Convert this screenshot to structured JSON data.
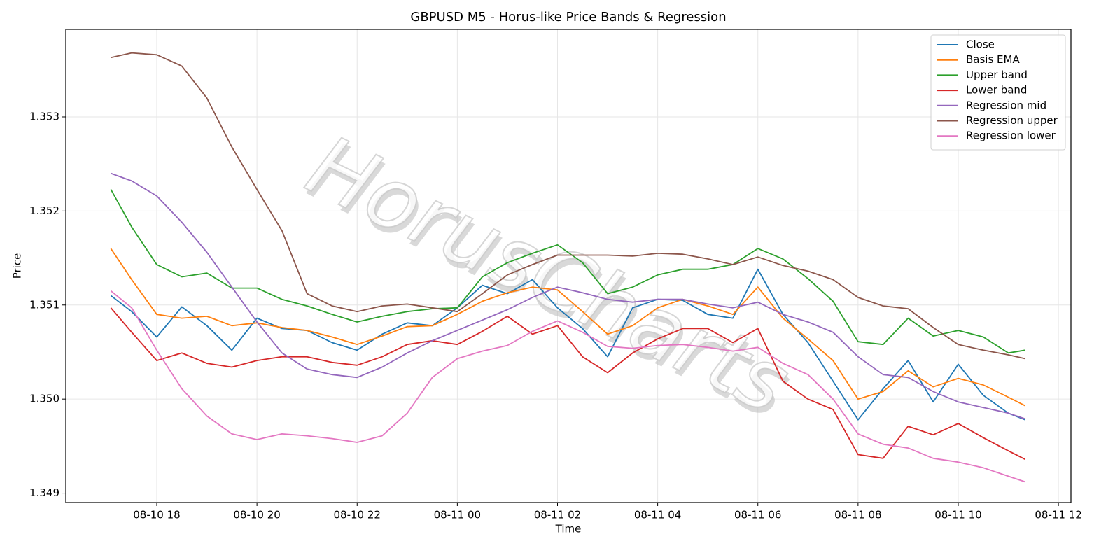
{
  "chart_data": {
    "type": "line",
    "title": "GBPUSD M5 - Horus-like Price Bands & Regression",
    "xlabel": "Time",
    "ylabel": "Price",
    "watermark": "HorusCharts",
    "x": [
      "08-10 17:05",
      "08-10 17:30",
      "08-10 18:00",
      "08-10 18:30",
      "08-10 19:00",
      "08-10 19:30",
      "08-10 20:00",
      "08-10 20:30",
      "08-10 21:00",
      "08-10 21:30",
      "08-10 22:00",
      "08-10 22:30",
      "08-10 23:00",
      "08-10 23:30",
      "08-11 00:00",
      "08-11 00:30",
      "08-11 01:00",
      "08-11 01:30",
      "08-11 02:00",
      "08-11 02:30",
      "08-11 03:00",
      "08-11 03:30",
      "08-11 04:00",
      "08-11 04:30",
      "08-11 05:00",
      "08-11 05:30",
      "08-11 06:00",
      "08-11 06:30",
      "08-11 07:00",
      "08-11 07:30",
      "08-11 08:00",
      "08-11 08:30",
      "08-11 09:00",
      "08-11 09:30",
      "08-11 10:00",
      "08-11 10:30",
      "08-11 11:00",
      "08-11 11:20"
    ],
    "series": [
      {
        "name": "Close",
        "color": "#1f77b4",
        "values": [
          1.3511,
          1.35093,
          1.35066,
          1.35098,
          1.35078,
          1.35052,
          1.35086,
          1.35075,
          1.35073,
          1.3506,
          1.35052,
          1.35069,
          1.35081,
          1.35078,
          1.35097,
          1.35121,
          1.35112,
          1.35127,
          1.35097,
          1.35075,
          1.35045,
          1.35097,
          1.35106,
          1.35105,
          1.3509,
          1.35086,
          1.35138,
          1.3509,
          1.3506,
          1.35019,
          1.34978,
          1.35011,
          1.35041,
          1.34997,
          1.35037,
          1.35004,
          1.34985,
          1.34978
        ]
      },
      {
        "name": "Basis EMA",
        "color": "#ff7f0e",
        "values": [
          1.3516,
          1.35127,
          1.3509,
          1.35086,
          1.35088,
          1.35078,
          1.35081,
          1.35076,
          1.35073,
          1.35066,
          1.35058,
          1.35067,
          1.35077,
          1.35078,
          1.3509,
          1.35104,
          1.35113,
          1.35119,
          1.35116,
          1.35093,
          1.35069,
          1.35078,
          1.35097,
          1.35106,
          1.35099,
          1.3509,
          1.35119,
          1.35086,
          1.35064,
          1.35041,
          1.35,
          1.35008,
          1.3503,
          1.35013,
          1.35022,
          1.35015,
          1.35002,
          1.34993
        ]
      },
      {
        "name": "Upper band",
        "color": "#2ca02c",
        "values": [
          1.35223,
          1.35183,
          1.35143,
          1.3513,
          1.35134,
          1.35118,
          1.35118,
          1.35106,
          1.35099,
          1.3509,
          1.35082,
          1.35088,
          1.35093,
          1.35096,
          1.35097,
          1.3513,
          1.35145,
          1.35155,
          1.35164,
          1.35145,
          1.35112,
          1.35119,
          1.35132,
          1.35138,
          1.35138,
          1.35143,
          1.3516,
          1.35149,
          1.35128,
          1.35104,
          1.35061,
          1.35058,
          1.35086,
          1.35067,
          1.35073,
          1.35066,
          1.35049,
          1.35052
        ]
      },
      {
        "name": "Lower band",
        "color": "#d62728",
        "values": [
          1.35097,
          1.35071,
          1.35041,
          1.35049,
          1.35038,
          1.35034,
          1.35041,
          1.35045,
          1.35045,
          1.35039,
          1.35036,
          1.35045,
          1.35058,
          1.35062,
          1.35058,
          1.35072,
          1.35088,
          1.35069,
          1.35078,
          1.35045,
          1.35028,
          1.35049,
          1.35064,
          1.35075,
          1.35075,
          1.3506,
          1.35075,
          1.35019,
          1.35,
          1.34989,
          1.34941,
          1.34937,
          1.34971,
          1.34962,
          1.34974,
          1.34959,
          1.34945,
          1.34936
        ]
      },
      {
        "name": "Regression mid",
        "color": "#9467bd",
        "values": [
          1.3524,
          1.35232,
          1.35216,
          1.35188,
          1.35156,
          1.35119,
          1.35082,
          1.35049,
          1.35032,
          1.35026,
          1.35023,
          1.35034,
          1.35049,
          1.35062,
          1.35073,
          1.35084,
          1.35095,
          1.35108,
          1.35119,
          1.35113,
          1.35106,
          1.35103,
          1.35106,
          1.35106,
          1.35101,
          1.35097,
          1.35103,
          1.3509,
          1.35082,
          1.35071,
          1.35045,
          1.35026,
          1.35023,
          1.35008,
          1.34997,
          1.34991,
          1.34985,
          1.34979
        ]
      },
      {
        "name": "Regression upper",
        "color": "#8c564b",
        "values": [
          1.35363,
          1.35368,
          1.35366,
          1.35354,
          1.3532,
          1.35268,
          1.35223,
          1.35179,
          1.35112,
          1.35099,
          1.35093,
          1.35099,
          1.35101,
          1.35097,
          1.35093,
          1.35112,
          1.35132,
          1.35143,
          1.35153,
          1.35153,
          1.35153,
          1.35152,
          1.35155,
          1.35154,
          1.35149,
          1.35143,
          1.35151,
          1.35142,
          1.35136,
          1.35127,
          1.35108,
          1.35099,
          1.35096,
          1.35076,
          1.35058,
          1.35052,
          1.35047,
          1.35043
        ]
      },
      {
        "name": "Regression lower",
        "color": "#e377c2",
        "values": [
          1.35115,
          1.35097,
          1.35052,
          1.35011,
          1.34982,
          1.34963,
          1.34957,
          1.34963,
          1.34961,
          1.34958,
          1.34954,
          1.34961,
          1.34985,
          1.35023,
          1.35043,
          1.35051,
          1.35057,
          1.35072,
          1.35083,
          1.35071,
          1.35056,
          1.35054,
          1.35057,
          1.35058,
          1.35055,
          1.35051,
          1.35055,
          1.35038,
          1.35026,
          1.35,
          1.34963,
          1.34952,
          1.34948,
          1.34937,
          1.34933,
          1.34927,
          1.34918,
          1.34912
        ]
      }
    ],
    "xlim": [
      "08-10 16:11",
      "08-11 12:15"
    ],
    "xticks": [
      {
        "value": "08-10 18:00",
        "label": "08-10 18"
      },
      {
        "value": "08-10 20:00",
        "label": "08-10 20"
      },
      {
        "value": "08-10 22:00",
        "label": "08-10 22"
      },
      {
        "value": "08-11 00:00",
        "label": "08-11 00"
      },
      {
        "value": "08-11 02:00",
        "label": "08-11 02"
      },
      {
        "value": "08-11 04:00",
        "label": "08-11 04"
      },
      {
        "value": "08-11 06:00",
        "label": "08-11 06"
      },
      {
        "value": "08-11 08:00",
        "label": "08-11 08"
      },
      {
        "value": "08-11 10:00",
        "label": "08-11 10"
      },
      {
        "value": "08-11 12:00",
        "label": "08-11 12"
      }
    ],
    "ylim": [
      1.3489,
      1.35393
    ],
    "yticks": [
      1.349,
      {
        "value": 1.35,
        "label": "1.350"
      },
      1.351,
      1.352,
      1.353
    ],
    "grid": true,
    "legend": "upper right"
  }
}
